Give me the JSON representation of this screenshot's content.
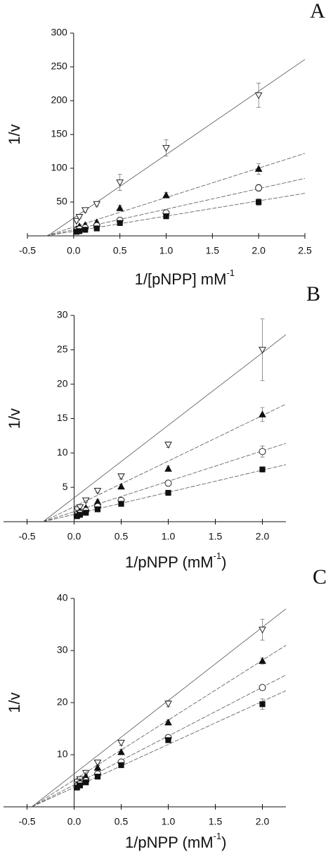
{
  "chart_data": [
    {
      "type": "scatter",
      "label": "A",
      "x_label": "1/[pNPP] mM",
      "x_label_sup": "-1",
      "y_label": "1/v",
      "xlim": [
        -0.5,
        2.5
      ],
      "xticks": [
        {
          "value": -0.5,
          "label": "-0.5"
        },
        {
          "value": 0,
          "label": "0.0"
        },
        {
          "value": 0.5,
          "label": "0.5"
        },
        {
          "value": 1,
          "label": "1.0"
        },
        {
          "value": 1.5,
          "label": "1.5"
        },
        {
          "value": 2,
          "label": "2.0"
        },
        {
          "value": 2.5,
          "label": "2.5"
        }
      ],
      "ylim": [
        0,
        300
      ],
      "yticks": [
        50,
        100,
        150,
        200,
        250,
        300
      ],
      "x": [
        0.03125,
        0.0625,
        0.125,
        0.25,
        0.5,
        1,
        2
      ],
      "series": [
        {
          "marker": "triangle-down-open",
          "color": "#222222",
          "values": [
            22,
            28,
            38,
            47,
            79,
            130,
            208
          ],
          "errors": [
            2,
            2,
            3,
            3,
            12,
            12,
            18
          ],
          "fit_x": [
            -0.28,
            2.5
          ],
          "fit_y": [
            0,
            261
          ]
        },
        {
          "marker": "triangle-filled",
          "color": "#111111",
          "values": [
            10,
            14,
            16,
            20,
            41,
            60,
            99
          ],
          "errors": [
            1,
            1,
            2,
            2,
            4,
            4,
            8
          ],
          "fit_x": [
            -0.3,
            2.5
          ],
          "fit_y": [
            0,
            122
          ]
        },
        {
          "marker": "circle-open",
          "color": "#222222",
          "values": [
            8,
            10,
            12,
            15,
            23,
            34,
            71
          ],
          "errors": [
            1,
            1,
            1,
            2,
            3,
            3,
            5
          ],
          "fit_x": [
            -0.3,
            2.5
          ],
          "fit_y": [
            0,
            85
          ]
        },
        {
          "marker": "square-filled",
          "color": "#111111",
          "values": [
            6,
            7,
            9,
            11,
            19,
            29,
            50
          ],
          "errors": [
            1,
            1,
            1,
            1,
            2,
            3,
            5
          ],
          "fit_x": [
            -0.3,
            2.5
          ],
          "fit_y": [
            0,
            63
          ]
        }
      ]
    },
    {
      "type": "scatter",
      "label": "B",
      "x_label": "1/pNPP (mM",
      "x_label_sup": "-1",
      "x_label_end": ")",
      "y_label": "1/v",
      "xlim": [
        -0.75,
        2.25
      ],
      "xticks": [
        {
          "value": -0.5,
          "label": "-0.5"
        },
        {
          "value": 0,
          "label": "0.0"
        },
        {
          "value": 0.5,
          "label": "0.5"
        },
        {
          "value": 1,
          "label": "1.0"
        },
        {
          "value": 1.5,
          "label": "1.5"
        },
        {
          "value": 2,
          "label": "2.0"
        }
      ],
      "ylim": [
        0,
        30
      ],
      "yticks": [
        5,
        10,
        15,
        20,
        25,
        30
      ],
      "x": [
        0.03125,
        0.0625,
        0.125,
        0.25,
        0.5,
        1,
        2
      ],
      "series": [
        {
          "marker": "triangle-down-open",
          "color": "#222222",
          "values": [
            1.8,
            2.1,
            3.1,
            4.5,
            6.6,
            11.2,
            25
          ],
          "errors": [
            0.3,
            0.3,
            0.3,
            0.3,
            0.4,
            0.4,
            4.5
          ],
          "fit_x": [
            -0.33,
            2.25
          ],
          "fit_y": [
            0,
            27.2
          ]
        },
        {
          "marker": "triangle-filled",
          "color": "#111111",
          "values": [
            1.2,
            1.5,
            2.0,
            2.9,
            5.1,
            7.7,
            15.6
          ],
          "errors": [
            0.2,
            0.2,
            0.2,
            0.3,
            0.3,
            0.4,
            1
          ],
          "fit_x": [
            -0.33,
            2.25
          ],
          "fit_y": [
            0,
            17.1
          ]
        },
        {
          "marker": "circle-open",
          "color": "#222222",
          "values": [
            1.0,
            1.2,
            1.6,
            2.2,
            3.1,
            5.6,
            10.2
          ],
          "errors": [
            0.2,
            0.2,
            0.2,
            0.2,
            0.3,
            0.3,
            0.8
          ],
          "fit_x": [
            -0.33,
            2.25
          ],
          "fit_y": [
            0,
            11.4
          ]
        },
        {
          "marker": "square-filled",
          "color": "#111111",
          "values": [
            0.8,
            1.0,
            1.3,
            1.8,
            2.6,
            4.2,
            7.6
          ],
          "errors": [
            0.1,
            0.1,
            0.1,
            0.2,
            0.2,
            0.2,
            0.3
          ],
          "fit_x": [
            -0.33,
            2.25
          ],
          "fit_y": [
            0,
            8.3
          ]
        }
      ]
    },
    {
      "type": "scatter",
      "label": "C",
      "x_label": "1/pNPP (mM",
      "x_label_sup": "-1",
      "x_label_end": ")",
      "y_label": "1/v",
      "xlim": [
        -0.75,
        2.25
      ],
      "xticks": [
        {
          "value": -0.5,
          "label": "-0.5"
        },
        {
          "value": 0,
          "label": "0.0"
        },
        {
          "value": 0.5,
          "label": "0.5"
        },
        {
          "value": 1,
          "label": "1.0"
        },
        {
          "value": 1.5,
          "label": "1.5"
        },
        {
          "value": 2,
          "label": "2.0"
        }
      ],
      "ylim": [
        0,
        40
      ],
      "yticks": [
        10,
        20,
        30,
        40
      ],
      "x": [
        0.03125,
        0.0625,
        0.125,
        0.25,
        0.5,
        1,
        2
      ],
      "series": [
        {
          "marker": "triangle-down-open",
          "color": "#222222",
          "values": [
            4.8,
            5.3,
            6.5,
            8.5,
            12.3,
            19.8,
            34
          ],
          "errors": [
            0.5,
            0.5,
            0.5,
            0.5,
            0.5,
            0.6,
            2
          ],
          "fit_x": [
            -0.45,
            2.25
          ],
          "fit_y": [
            0,
            38
          ]
        },
        {
          "marker": "triangle-filled",
          "color": "#111111",
          "values": [
            4.3,
            4.8,
            5.8,
            7.5,
            10.5,
            16.2,
            28
          ],
          "errors": [
            0.4,
            0.4,
            0.4,
            0.4,
            0.5,
            0.5,
            0.6
          ],
          "fit_x": [
            -0.45,
            2.25
          ],
          "fit_y": [
            0,
            31
          ]
        },
        {
          "marker": "circle-open",
          "color": "#222222",
          "values": [
            4.0,
            4.4,
            5.0,
            6.3,
            8.6,
            13.3,
            22.9
          ],
          "errors": [
            0.4,
            0.4,
            0.4,
            0.4,
            0.4,
            0.5,
            0.5
          ],
          "fit_x": [
            -0.45,
            2.25
          ],
          "fit_y": [
            0,
            25.3
          ]
        },
        {
          "marker": "square-filled",
          "color": "#111111",
          "values": [
            3.7,
            4.1,
            4.7,
            5.8,
            8.0,
            12.8,
            19.7
          ],
          "errors": [
            0.3,
            0.3,
            0.3,
            0.3,
            0.4,
            0.4,
            1
          ],
          "fit_x": [
            -0.45,
            2.25
          ],
          "fit_y": [
            0,
            22.3
          ]
        }
      ]
    }
  ]
}
